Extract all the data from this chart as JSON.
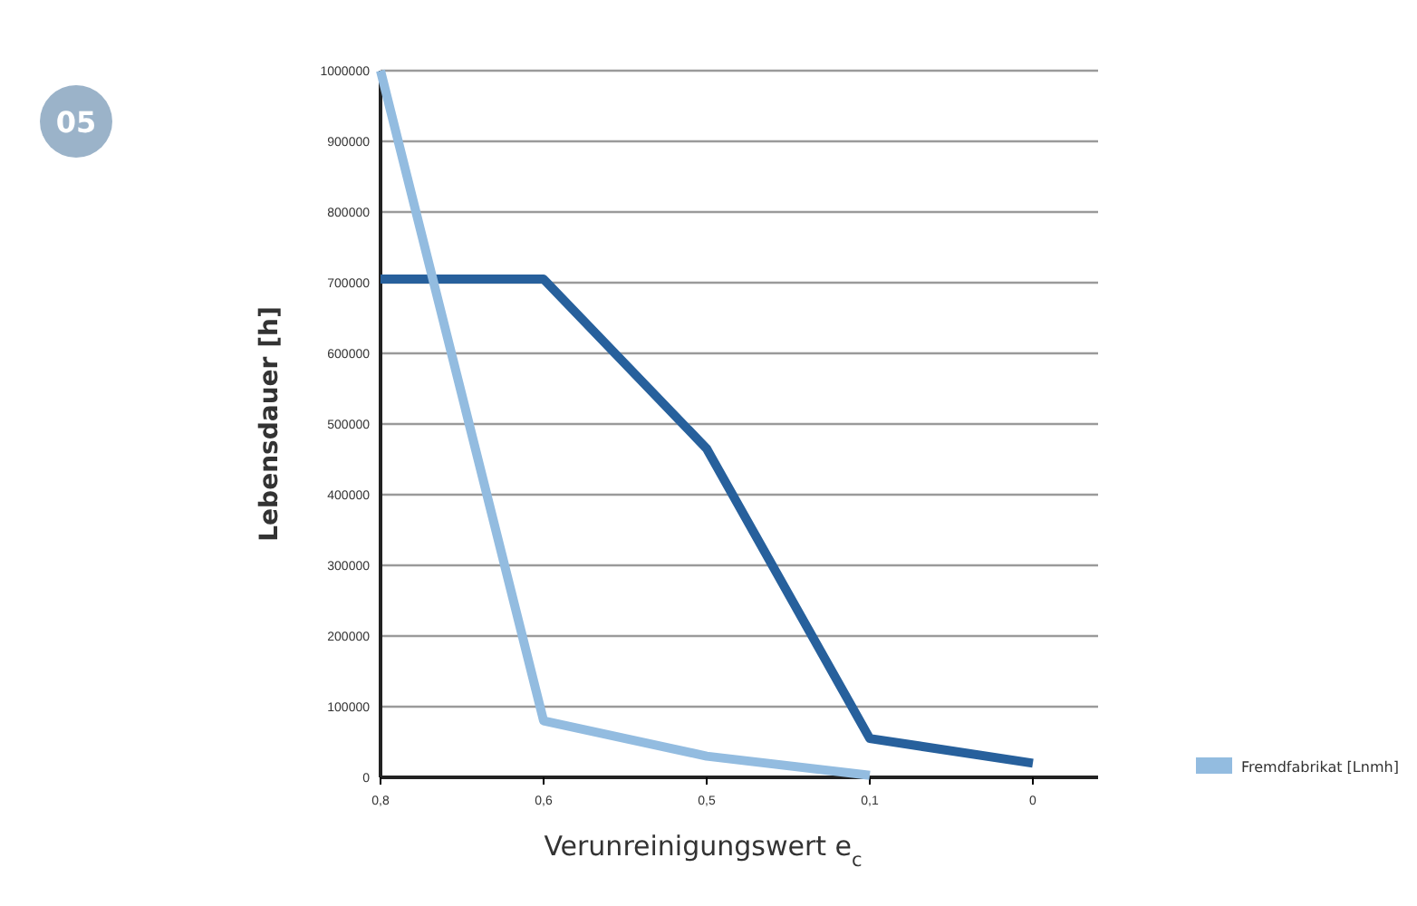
{
  "chart_data": {
    "type": "line",
    "xlabel": "Verunreinigungswert e$_{c}$",
    "ylabel": "Lebensdauer [h]",
    "annotations": [
      "05"
    ],
    "categories": [
      "0,8",
      "0,6",
      "0,5",
      "0,1",
      "0"
    ],
    "series": [
      {
        "color": "#27609c",
        "values": [
          705000,
          705000,
          465000,
          55000,
          20000
        ]
      },
      {
        "name": "Fremdfabrikat [Lnmh]",
        "color": "#93bce0",
        "values": [
          1000000,
          80000,
          30000,
          3000,
          null
        ]
      }
    ],
    "ylim": [
      0,
      1000000
    ],
    "yticks": [
      0,
      100000,
      200000,
      300000,
      400000,
      500000,
      600000,
      700000,
      800000,
      900000,
      1000000
    ],
    "grid": "y",
    "legend": "bottom right",
    "marker": "none",
    "line_style": "solid"
  }
}
